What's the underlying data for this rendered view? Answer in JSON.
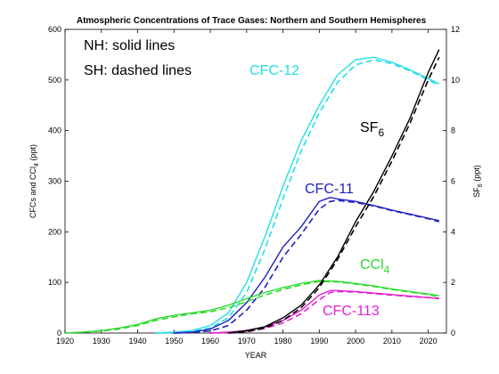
{
  "chart_data": {
    "type": "line",
    "title": "Atmospheric Concentrations of Trace Gases: Northern and Southern Hemispheres",
    "xlabel": "YEAR",
    "ylabel_left": "CFCs and CCl",
    "ylabel_left_sub": "4",
    "ylabel_left_unit": " (ppt)",
    "ylabel_right": "SF",
    "ylabel_right_sub": "6",
    "ylabel_right_unit": " (ppt)",
    "xlim": [
      1920,
      2025
    ],
    "ylim_left": [
      0,
      600
    ],
    "ylim_right": [
      0,
      12
    ],
    "x_ticks": [
      1920,
      1930,
      1940,
      1950,
      1960,
      1970,
      1980,
      1990,
      2000,
      2010,
      2020
    ],
    "y_ticks_left": [
      0,
      100,
      200,
      300,
      400,
      500,
      600
    ],
    "y_ticks_right": [
      0,
      2,
      4,
      6,
      8,
      10,
      12
    ],
    "grid": false,
    "notes": [
      "NH: solid lines",
      "SH: dashed lines"
    ],
    "series": [
      {
        "name": "CFC-12",
        "label": "CFC-12",
        "label_sub": "",
        "color": "#22e0e6",
        "axis": "left",
        "nh": [
          [
            1945,
            0
          ],
          [
            1950,
            2
          ],
          [
            1955,
            5
          ],
          [
            1960,
            15
          ],
          [
            1965,
            40
          ],
          [
            1970,
            100
          ],
          [
            1975,
            190
          ],
          [
            1980,
            290
          ],
          [
            1985,
            380
          ],
          [
            1990,
            450
          ],
          [
            1995,
            510
          ],
          [
            2000,
            540
          ],
          [
            2005,
            545
          ],
          [
            2010,
            535
          ],
          [
            2015,
            520
          ],
          [
            2020,
            503
          ],
          [
            2023,
            492
          ]
        ],
        "sh": [
          [
            1945,
            0
          ],
          [
            1950,
            1
          ],
          [
            1955,
            3
          ],
          [
            1960,
            10
          ],
          [
            1965,
            30
          ],
          [
            1970,
            80
          ],
          [
            1975,
            165
          ],
          [
            1980,
            265
          ],
          [
            1985,
            360
          ],
          [
            1990,
            435
          ],
          [
            1995,
            495
          ],
          [
            2000,
            530
          ],
          [
            2005,
            540
          ],
          [
            2010,
            532
          ],
          [
            2015,
            518
          ],
          [
            2020,
            500
          ],
          [
            2023,
            490
          ]
        ]
      },
      {
        "name": "CFC-11",
        "label": "CFC-11",
        "label_sub": "",
        "color": "#1f1fc0",
        "axis": "left",
        "nh": [
          [
            1950,
            0
          ],
          [
            1955,
            2
          ],
          [
            1960,
            8
          ],
          [
            1965,
            25
          ],
          [
            1970,
            60
          ],
          [
            1975,
            110
          ],
          [
            1980,
            170
          ],
          [
            1985,
            210
          ],
          [
            1990,
            260
          ],
          [
            1993,
            268
          ],
          [
            1995,
            265
          ],
          [
            2000,
            260
          ],
          [
            2005,
            252
          ],
          [
            2010,
            243
          ],
          [
            2015,
            235
          ],
          [
            2020,
            227
          ],
          [
            2023,
            222
          ]
        ],
        "sh": [
          [
            1950,
            0
          ],
          [
            1955,
            1
          ],
          [
            1960,
            4
          ],
          [
            1965,
            15
          ],
          [
            1970,
            45
          ],
          [
            1975,
            90
          ],
          [
            1980,
            150
          ],
          [
            1985,
            195
          ],
          [
            1990,
            245
          ],
          [
            1993,
            260
          ],
          [
            1995,
            262
          ],
          [
            2000,
            258
          ],
          [
            2005,
            251
          ],
          [
            2010,
            242
          ],
          [
            2015,
            234
          ],
          [
            2020,
            226
          ],
          [
            2023,
            220
          ]
        ]
      },
      {
        "name": "CCl4",
        "label": "CCl",
        "label_sub": "4",
        "color": "#2ddb2d",
        "axis": "left",
        "nh": [
          [
            1920,
            0
          ],
          [
            1925,
            2
          ],
          [
            1930,
            5
          ],
          [
            1935,
            10
          ],
          [
            1940,
            17
          ],
          [
            1945,
            28
          ],
          [
            1950,
            35
          ],
          [
            1955,
            40
          ],
          [
            1960,
            45
          ],
          [
            1965,
            55
          ],
          [
            1970,
            68
          ],
          [
            1975,
            80
          ],
          [
            1980,
            90
          ],
          [
            1985,
            98
          ],
          [
            1990,
            104
          ],
          [
            1995,
            102
          ],
          [
            2000,
            98
          ],
          [
            2005,
            93
          ],
          [
            2010,
            87
          ],
          [
            2015,
            82
          ],
          [
            2020,
            77
          ],
          [
            2023,
            74
          ]
        ],
        "sh": [
          [
            1920,
            0
          ],
          [
            1925,
            2
          ],
          [
            1930,
            4
          ],
          [
            1935,
            8
          ],
          [
            1940,
            15
          ],
          [
            1945,
            25
          ],
          [
            1950,
            32
          ],
          [
            1955,
            38
          ],
          [
            1960,
            42
          ],
          [
            1965,
            50
          ],
          [
            1970,
            62
          ],
          [
            1975,
            75
          ],
          [
            1980,
            86
          ],
          [
            1985,
            95
          ],
          [
            1990,
            102
          ],
          [
            1995,
            101
          ],
          [
            2000,
            97
          ],
          [
            2005,
            92
          ],
          [
            2010,
            86
          ],
          [
            2015,
            81
          ],
          [
            2020,
            76
          ],
          [
            2023,
            72
          ]
        ]
      },
      {
        "name": "CFC-113",
        "label": "CFC-113",
        "label_sub": "",
        "color": "#e61fd6",
        "axis": "left",
        "nh": [
          [
            1960,
            0
          ],
          [
            1965,
            2
          ],
          [
            1970,
            5
          ],
          [
            1975,
            12
          ],
          [
            1980,
            25
          ],
          [
            1985,
            45
          ],
          [
            1990,
            75
          ],
          [
            1993,
            84
          ],
          [
            1995,
            84
          ],
          [
            2000,
            82
          ],
          [
            2005,
            79
          ],
          [
            2010,
            76
          ],
          [
            2015,
            73
          ],
          [
            2020,
            70
          ],
          [
            2023,
            69
          ]
        ],
        "sh": [
          [
            1960,
            0
          ],
          [
            1965,
            1
          ],
          [
            1970,
            3
          ],
          [
            1975,
            9
          ],
          [
            1980,
            20
          ],
          [
            1985,
            38
          ],
          [
            1990,
            66
          ],
          [
            1993,
            80
          ],
          [
            1995,
            82
          ],
          [
            2000,
            81
          ],
          [
            2005,
            78
          ],
          [
            2010,
            75
          ],
          [
            2015,
            72
          ],
          [
            2020,
            70
          ],
          [
            2023,
            68
          ]
        ]
      },
      {
        "name": "SF6",
        "label": "SF",
        "label_sub": "6",
        "color": "#000000",
        "axis": "right",
        "nh": [
          [
            1965,
            0
          ],
          [
            1970,
            0.1
          ],
          [
            1975,
            0.25
          ],
          [
            1980,
            0.6
          ],
          [
            1985,
            1.1
          ],
          [
            1990,
            1.9
          ],
          [
            1995,
            3.0
          ],
          [
            2000,
            4.4
          ],
          [
            2005,
            5.6
          ],
          [
            2010,
            7.0
          ],
          [
            2015,
            8.5
          ],
          [
            2020,
            10.3
          ],
          [
            2023,
            11.2
          ]
        ],
        "sh": [
          [
            1965,
            0
          ],
          [
            1970,
            0.05
          ],
          [
            1975,
            0.2
          ],
          [
            1980,
            0.5
          ],
          [
            1985,
            1.0
          ],
          [
            1990,
            1.8
          ],
          [
            1995,
            2.9
          ],
          [
            2000,
            4.2
          ],
          [
            2005,
            5.4
          ],
          [
            2010,
            6.8
          ],
          [
            2015,
            8.3
          ],
          [
            2020,
            10.0
          ],
          [
            2023,
            10.9
          ]
        ]
      }
    ]
  }
}
